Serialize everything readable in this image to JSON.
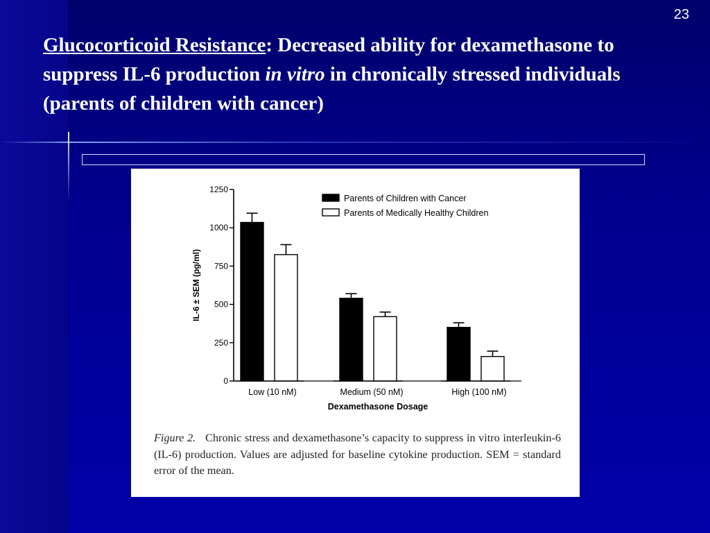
{
  "slide": {
    "number": "23",
    "title_term": "Glucocorticoid Resistance",
    "title_colon": ":  ",
    "title_part1": "Decreased ability for dexamethasone to suppress IL-6 production ",
    "title_italic": "in vitro",
    "title_part2": " in chronically stressed individuals (parents of children with cancer)"
  },
  "figure": {
    "caption_label": "Figure 2.",
    "caption_text": "Chronic stress and dexamethasone’s capacity to suppress in vitro interleukin-6 (IL-6) production. Values are adjusted for baseline cytokine production. SEM = standard error of the mean."
  },
  "colors": {
    "background": "#00007f",
    "cancer_bar": "#000000",
    "healthy_bar": "#ffffff"
  },
  "chart_data": {
    "type": "bar",
    "categories": [
      "Low (10 nM)",
      "Medium (50 nM)",
      "High (100 nM)"
    ],
    "series": [
      {
        "name": "Parents of Children with Cancer",
        "values": [
          1035,
          540,
          350
        ],
        "sem": [
          60,
          30,
          30
        ]
      },
      {
        "name": "Parents of Medically Healthy Children",
        "values": [
          825,
          420,
          160
        ],
        "sem": [
          65,
          30,
          35
        ]
      }
    ],
    "xlabel": "Dexamethasone Dosage",
    "ylabel": "IL-6 ± SEM (pg/ml)",
    "ylim": [
      0,
      1250
    ],
    "yticks": [
      0,
      250,
      500,
      750,
      1000,
      1250
    ],
    "ytick_labels": [
      "0",
      "250",
      "500",
      "750",
      "1000",
      "1250"
    ],
    "legend_position": "top-right",
    "grid": false
  }
}
